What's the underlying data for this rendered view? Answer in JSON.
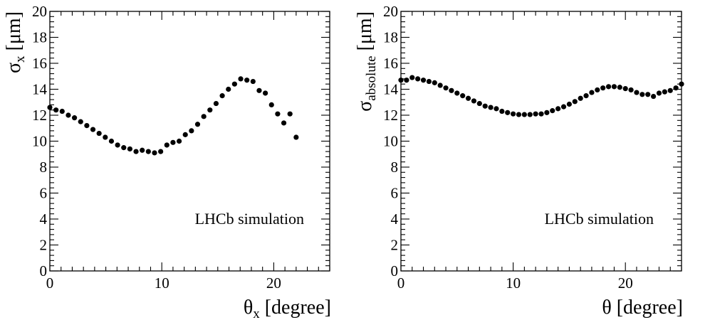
{
  "chart_data": [
    {
      "type": "scatter",
      "panel": "left",
      "title": "",
      "xlabel": {
        "main": "θ",
        "sub": "x",
        "unit": " [degree]"
      },
      "ylabel": {
        "main": "σ",
        "sub": "x",
        "unit": " [μm]"
      },
      "xlim": [
        0,
        25
      ],
      "ylim": [
        0,
        20
      ],
      "xticks": [
        0,
        10,
        20
      ],
      "xtick_labels": [
        "0",
        "10",
        "20"
      ],
      "yticks": [
        0,
        2,
        4,
        6,
        8,
        10,
        12,
        14,
        16,
        18,
        20
      ],
      "ytick_labels": [
        "0",
        "2",
        "4",
        "6",
        "8",
        "10",
        "12",
        "14",
        "16",
        "18",
        "20"
      ],
      "annotation": "LHCb simulation",
      "legend": "none",
      "grid": false,
      "series": [
        {
          "name": "σx",
          "x": [
            0.0,
            0.55,
            1.1,
            1.65,
            2.2,
            2.75,
            3.3,
            3.85,
            4.4,
            4.95,
            5.5,
            6.05,
            6.6,
            7.15,
            7.7,
            8.25,
            8.8,
            9.35,
            9.9,
            10.45,
            11.0,
            11.55,
            12.1,
            12.65,
            13.2,
            13.75,
            14.3,
            14.85,
            15.4,
            15.95,
            16.5,
            17.05,
            17.6,
            18.15,
            18.7,
            19.25,
            19.8,
            20.35,
            20.9,
            21.45,
            22.0
          ],
          "y": [
            12.6,
            12.4,
            12.3,
            12.0,
            11.8,
            11.5,
            11.2,
            10.9,
            10.6,
            10.3,
            10.0,
            9.7,
            9.5,
            9.4,
            9.2,
            9.3,
            9.2,
            9.1,
            9.2,
            9.7,
            9.9,
            10.0,
            10.5,
            10.8,
            11.3,
            11.9,
            12.4,
            12.9,
            13.5,
            14.0,
            14.4,
            14.8,
            14.7,
            14.6,
            13.9,
            13.7,
            12.8,
            12.1,
            11.4,
            12.1,
            10.3
          ]
        }
      ]
    },
    {
      "type": "scatter",
      "panel": "right",
      "title": "",
      "xlabel": {
        "main": "θ",
        "sub": "",
        "unit": " [degree]"
      },
      "ylabel": {
        "main": "σ",
        "sub": "absolute",
        "unit": " [μm]"
      },
      "xlim": [
        0,
        25
      ],
      "ylim": [
        0,
        20
      ],
      "xticks": [
        0,
        10,
        20
      ],
      "xtick_labels": [
        "0",
        "10",
        "20"
      ],
      "yticks": [
        0,
        2,
        4,
        6,
        8,
        10,
        12,
        14,
        16,
        18,
        20
      ],
      "ytick_labels": [
        "0",
        "2",
        "4",
        "6",
        "8",
        "10",
        "12",
        "14",
        "16",
        "18",
        "20"
      ],
      "annotation": "LHCb simulation",
      "legend": "none",
      "grid": false,
      "series": [
        {
          "name": "σabsolute",
          "x": [
            0.0,
            0.5,
            1.0,
            1.5,
            2.0,
            2.5,
            3.0,
            3.5,
            4.0,
            4.5,
            5.0,
            5.5,
            6.0,
            6.5,
            7.0,
            7.5,
            8.0,
            8.5,
            9.0,
            9.5,
            10.0,
            10.5,
            11.0,
            11.5,
            12.0,
            12.5,
            13.0,
            13.5,
            14.0,
            14.5,
            15.0,
            15.5,
            16.0,
            16.5,
            17.0,
            17.5,
            18.0,
            18.5,
            19.0,
            19.5,
            20.0,
            20.5,
            21.0,
            21.5,
            22.0,
            22.5,
            23.0,
            23.5,
            24.0,
            24.5,
            25.0
          ],
          "y": [
            14.7,
            14.7,
            14.9,
            14.8,
            14.7,
            14.6,
            14.5,
            14.3,
            14.1,
            13.9,
            13.7,
            13.5,
            13.3,
            13.1,
            12.9,
            12.7,
            12.6,
            12.5,
            12.3,
            12.2,
            12.1,
            12.05,
            12.05,
            12.05,
            12.1,
            12.1,
            12.2,
            12.35,
            12.5,
            12.65,
            12.85,
            13.05,
            13.3,
            13.5,
            13.75,
            13.95,
            14.1,
            14.2,
            14.2,
            14.15,
            14.05,
            13.95,
            13.75,
            13.6,
            13.6,
            13.45,
            13.7,
            13.8,
            13.9,
            14.1,
            14.4
          ]
        }
      ]
    }
  ]
}
